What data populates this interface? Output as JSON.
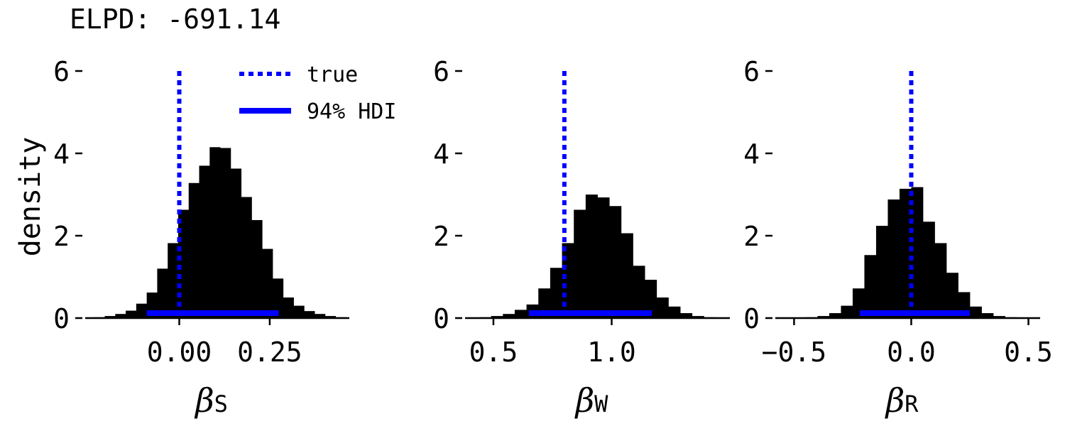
{
  "header": {
    "elpd_text": "ELPD: -691.14"
  },
  "y_axis_label": "density",
  "legend": {
    "true_label": "true",
    "hdi_label": "94% HDI"
  },
  "colors": {
    "bars": "#000000",
    "accent": "#0000ff"
  },
  "chart_data": [
    {
      "type": "bar",
      "xlabel_main": "β",
      "xlabel_sub": "S",
      "ylabel": "density",
      "xlim": [
        -0.26,
        0.47
      ],
      "ylim": [
        0,
        6
      ],
      "x_ticks": [
        0.0,
        0.25
      ],
      "x_tick_labels": [
        "0.00",
        "0.25"
      ],
      "y_ticks": [
        0,
        2,
        4,
        6
      ],
      "y_tick_labels": [
        "0",
        "2",
        "4",
        "6"
      ],
      "bin_edges": [
        -0.235,
        -0.206,
        -0.177,
        -0.148,
        -0.119,
        -0.09,
        -0.061,
        -0.032,
        -0.003,
        0.026,
        0.055,
        0.084,
        0.113,
        0.142,
        0.171,
        0.2,
        0.229,
        0.258,
        0.287,
        0.316,
        0.345,
        0.374,
        0.403,
        0.432,
        0.461
      ],
      "densities": [
        0.02,
        0.05,
        0.1,
        0.18,
        0.35,
        0.62,
        1.2,
        1.82,
        2.63,
        3.28,
        3.7,
        4.15,
        4.13,
        3.63,
        2.94,
        2.38,
        1.68,
        0.96,
        0.5,
        0.3,
        0.17,
        0.1,
        0.05,
        0.02
      ],
      "true_value": 0.0,
      "hdi": [
        -0.09,
        0.275
      ]
    },
    {
      "type": "bar",
      "xlabel_main": "β",
      "xlabel_sub": "W",
      "ylabel": "density",
      "xlim": [
        0.38,
        1.5
      ],
      "ylim": [
        0,
        6
      ],
      "x_ticks": [
        0.5,
        1.0
      ],
      "x_tick_labels": [
        "0.5",
        "1.0"
      ],
      "y_ticks": [
        0,
        2,
        4,
        6
      ],
      "y_tick_labels": [
        "0",
        "2",
        "4",
        "6"
      ],
      "bin_edges": [
        0.44,
        0.49,
        0.54,
        0.59,
        0.64,
        0.69,
        0.74,
        0.79,
        0.84,
        0.89,
        0.94,
        0.99,
        1.04,
        1.09,
        1.14,
        1.19,
        1.24,
        1.29,
        1.34,
        1.39,
        1.44
      ],
      "densities": [
        0.02,
        0.05,
        0.1,
        0.2,
        0.33,
        0.72,
        1.22,
        1.82,
        2.63,
        3.0,
        2.93,
        2.72,
        2.06,
        1.27,
        0.93,
        0.5,
        0.28,
        0.12,
        0.05,
        0.02
      ],
      "true_value": 0.8,
      "hdi": [
        0.65,
        1.17
      ]
    },
    {
      "type": "bar",
      "xlabel_main": "β",
      "xlabel_sub": "R",
      "ylabel": "density",
      "xlim": [
        -0.58,
        0.55
      ],
      "ylim": [
        0,
        6
      ],
      "x_ticks": [
        -0.5,
        0.0,
        0.5
      ],
      "x_tick_labels": [
        "−0.5",
        "0.0",
        "0.5"
      ],
      "y_ticks": [
        0,
        2,
        4,
        6
      ],
      "y_tick_labels": [
        "0",
        "2",
        "4",
        "6"
      ],
      "bin_edges": [
        -0.5,
        -0.45,
        -0.4,
        -0.35,
        -0.3,
        -0.25,
        -0.2,
        -0.15,
        -0.1,
        -0.05,
        0.0,
        0.05,
        0.1,
        0.15,
        0.2,
        0.25,
        0.3,
        0.35,
        0.4,
        0.45,
        0.5
      ],
      "densities": [
        0.01,
        0.02,
        0.05,
        0.12,
        0.3,
        0.72,
        1.53,
        2.24,
        2.88,
        3.14,
        3.18,
        2.34,
        1.82,
        1.1,
        0.63,
        0.28,
        0.12,
        0.05,
        0.02,
        0.01
      ],
      "true_value": 0.0,
      "hdi": [
        -0.22,
        0.25
      ]
    }
  ]
}
